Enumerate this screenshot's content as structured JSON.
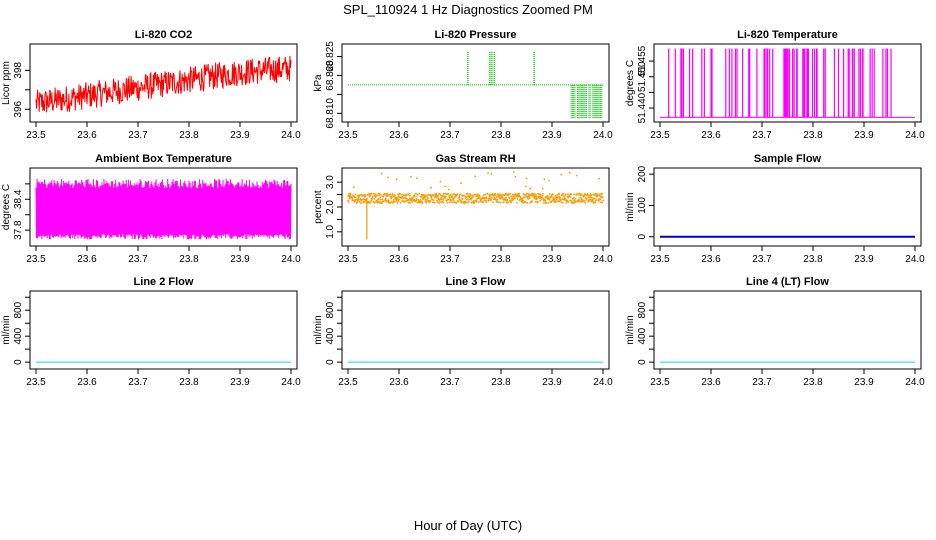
{
  "title": "SPL_110924  1 Hz Diagnostics Zoomed PM",
  "xlabel": "Hour of Day (UTC)",
  "chart_data": [
    {
      "type": "line",
      "title": "Li-820 CO2",
      "ylabel": "Licor ppm",
      "xlim": [
        23.5,
        24.0
      ],
      "ylim": [
        395.5,
        399.2
      ],
      "xticks": [
        "23.5",
        "23.6",
        "23.7",
        "23.8",
        "23.9",
        "24.0"
      ],
      "yticks": [
        396,
        397,
        398
      ],
      "yticklabels": [
        "396",
        "",
        "398"
      ],
      "color": "#ff0000",
      "style": "noise",
      "x": [
        23.5,
        23.55,
        23.6,
        23.65,
        23.7,
        23.75,
        23.8,
        23.85,
        23.9,
        23.95,
        24.0
      ],
      "y": [
        396.3,
        396.5,
        396.7,
        396.9,
        397.1,
        397.3,
        397.5,
        397.7,
        397.9,
        398.0,
        398.1
      ],
      "spread": 0.7
    },
    {
      "type": "line",
      "title": "Li-820 Pressure",
      "ylabel": "kPa",
      "xlim": [
        23.5,
        24.0
      ],
      "ylim": [
        68.8085,
        68.8275
      ],
      "xticks": [
        "23.5",
        "23.6",
        "23.7",
        "23.8",
        "23.9",
        "24.0"
      ],
      "yticks": [
        68.81,
        68.815,
        68.82,
        68.825
      ],
      "yticklabels": [
        "68.810",
        "",
        "68.820",
        "68.825"
      ],
      "color": "#00cc00",
      "style": "step",
      "base": 68.8175,
      "high": 68.8265,
      "low": 68.8085,
      "high_spikes": [
        23.735,
        23.778,
        23.782,
        23.787,
        23.865
      ],
      "low_start": 23.935,
      "low_end": 24.0
    },
    {
      "type": "line",
      "title": "Li-820 Temperature",
      "ylabel": "degrees C",
      "xlim": [
        23.5,
        24.0
      ],
      "ylim": [
        51.4365,
        51.4595
      ],
      "xticks": [
        "23.5",
        "23.6",
        "23.7",
        "23.8",
        "23.9",
        "24.0"
      ],
      "yticks": [
        51.44,
        51.445,
        51.45,
        51.455
      ],
      "yticklabels": [
        "51.440",
        "",
        "51.450",
        "51.455"
      ],
      "color": "#ff00ff",
      "style": "toggle",
      "low": 51.437,
      "high": 51.459,
      "spike_density": 70
    },
    {
      "type": "line",
      "title": "Ambient Box Temperature",
      "ylabel": "degrees C",
      "xlim": [
        23.5,
        24.0
      ],
      "ylim": [
        37.55,
        38.95
      ],
      "xticks": [
        "23.5",
        "23.6",
        "23.7",
        "23.8",
        "23.9",
        "24.0"
      ],
      "yticks": [
        37.8,
        38.1,
        38.4,
        38.7
      ],
      "yticklabels": [
        "37.8",
        "",
        "38.4",
        ""
      ],
      "color": "#ff00ff",
      "style": "band",
      "band_low": 37.72,
      "band_high": 38.62,
      "band_min": 37.62,
      "band_max": 38.8
    },
    {
      "type": "scatter",
      "title": "Gas Stream RH",
      "ylabel": "percent",
      "xlim": [
        23.5,
        24.0
      ],
      "ylim": [
        0.55,
        3.45
      ],
      "xticks": [
        "23.5",
        "23.6",
        "23.7",
        "23.8",
        "23.9",
        "24.0"
      ],
      "yticks": [
        1.0,
        1.5,
        2.0,
        2.5,
        3.0
      ],
      "yticklabels": [
        "1.0",
        "",
        "2.0",
        "",
        "3.0"
      ],
      "color": "#ff9900",
      "style": "dots",
      "center": 2.35,
      "spread": 0.35,
      "outlier_low": [
        23.537,
        0.7
      ]
    },
    {
      "type": "line",
      "title": "Sample Flow",
      "ylabel": "ml/min",
      "xlim": [
        23.5,
        24.0
      ],
      "ylim": [
        -20,
        210
      ],
      "xticks": [
        "23.5",
        "23.6",
        "23.7",
        "23.8",
        "23.9",
        "24.0"
      ],
      "yticks": [
        0,
        100,
        200
      ],
      "yticklabels": [
        "0",
        "100",
        "200"
      ],
      "color": "#0000cc",
      "style": "flat",
      "value": 0,
      "width": 2
    },
    {
      "type": "line",
      "title": "Line 2 Flow",
      "ylabel": "ml/min",
      "xlim": [
        23.5,
        24.0
      ],
      "ylim": [
        -60,
        1050
      ],
      "xticks": [
        "23.5",
        "23.6",
        "23.7",
        "23.8",
        "23.9",
        "24.0"
      ],
      "yticks": [
        0,
        200,
        400,
        600,
        800,
        1000
      ],
      "yticklabels": [
        "0",
        "",
        "400",
        "",
        "800",
        ""
      ],
      "color": "#00dddd",
      "style": "flat",
      "value": 0,
      "width": 1
    },
    {
      "type": "line",
      "title": "Line 3 Flow",
      "ylabel": "ml/min",
      "xlim": [
        23.5,
        24.0
      ],
      "ylim": [
        -60,
        1050
      ],
      "xticks": [
        "23.5",
        "23.6",
        "23.7",
        "23.8",
        "23.9",
        "24.0"
      ],
      "yticks": [
        0,
        200,
        400,
        600,
        800,
        1000
      ],
      "yticklabels": [
        "0",
        "",
        "400",
        "",
        "800",
        ""
      ],
      "color": "#00dddd",
      "style": "flat",
      "value": 0,
      "width": 1
    },
    {
      "type": "line",
      "title": "Line 4 (LT) Flow",
      "ylabel": "ml/min",
      "xlim": [
        23.5,
        24.0
      ],
      "ylim": [
        -60,
        1050
      ],
      "xticks": [
        "23.5",
        "23.6",
        "23.7",
        "23.8",
        "23.9",
        "24.0"
      ],
      "yticks": [
        0,
        200,
        400,
        600,
        800,
        1000
      ],
      "yticklabels": [
        "0",
        "",
        "400",
        "",
        "800",
        ""
      ],
      "color": "#00dddd",
      "style": "flat",
      "value": 0,
      "width": 1
    }
  ]
}
